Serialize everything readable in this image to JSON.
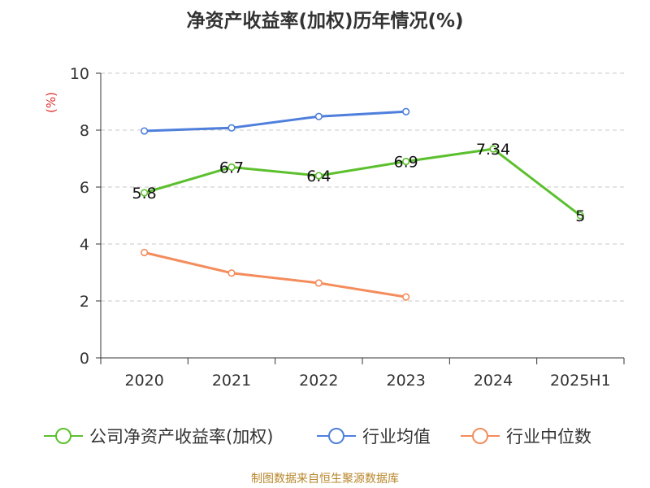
{
  "title": "净资产收益率(加权)历年情况(%)",
  "footer": "制图数据来自恒生聚源数据库",
  "chart_data": {
    "type": "line",
    "ylabel": "(%)",
    "ylim": [
      0,
      10
    ],
    "yticks": [
      0,
      2,
      4,
      6,
      8,
      10
    ],
    "grid": true,
    "legend_position": "bottom",
    "categories": [
      "2020",
      "2021",
      "2022",
      "2023",
      "2024",
      "2025H1"
    ],
    "series": [
      {
        "name": "公司净资产收益率(加权)",
        "color": "#5cc02e",
        "values": [
          5.8,
          6.7,
          6.4,
          6.9,
          7.34,
          5
        ],
        "labels": [
          "5.8",
          "6.7",
          "6.4",
          "6.9",
          "7.34",
          "5"
        ]
      },
      {
        "name": "行业均值",
        "color": "#4f7fdc",
        "values": [
          7.97,
          8.08,
          8.48,
          8.65,
          null,
          null
        ]
      },
      {
        "name": "行业中位数",
        "color": "#f48c5c",
        "values": [
          3.7,
          2.98,
          2.63,
          2.14,
          null,
          null
        ]
      }
    ]
  }
}
